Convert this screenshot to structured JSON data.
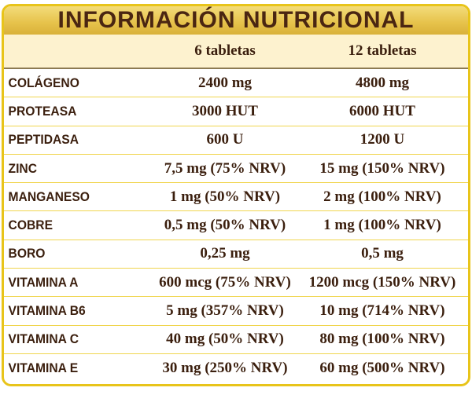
{
  "title": "INFORMACIÓN NUTRICIONAL",
  "columns": [
    "",
    "6 tabletas",
    "12 tabletas"
  ],
  "rows": [
    [
      "COLÁGENO",
      "2400 mg",
      "4800 mg"
    ],
    [
      "PROTEASA",
      "3000 HUT",
      "6000 HUT"
    ],
    [
      "PEPTIDASA",
      "600 U",
      "1200 U"
    ],
    [
      "ZINC",
      "7,5 mg (75% NRV)",
      "15 mg (150% NRV)"
    ],
    [
      "MANGANESO",
      "1 mg (50% NRV)",
      "2 mg (100% NRV)"
    ],
    [
      "COBRE",
      "0,5 mg (50% NRV)",
      "1 mg (100% NRV)"
    ],
    [
      "BORO",
      "0,25 mg",
      "0,5 mg"
    ],
    [
      "VITAMINA A",
      "600 mcg (75% NRV)",
      "1200 mcg (150% NRV)"
    ],
    [
      "VITAMINA B6",
      "5 mg (357% NRV)",
      "10 mg (714% NRV)"
    ],
    [
      "VITAMINA C",
      "40 mg (50% NRV)",
      "80 mg (100% NRV)"
    ],
    [
      "VITAMINA E",
      "30 mg (250% NRV)",
      "60 mg (500% NRV)"
    ]
  ]
}
